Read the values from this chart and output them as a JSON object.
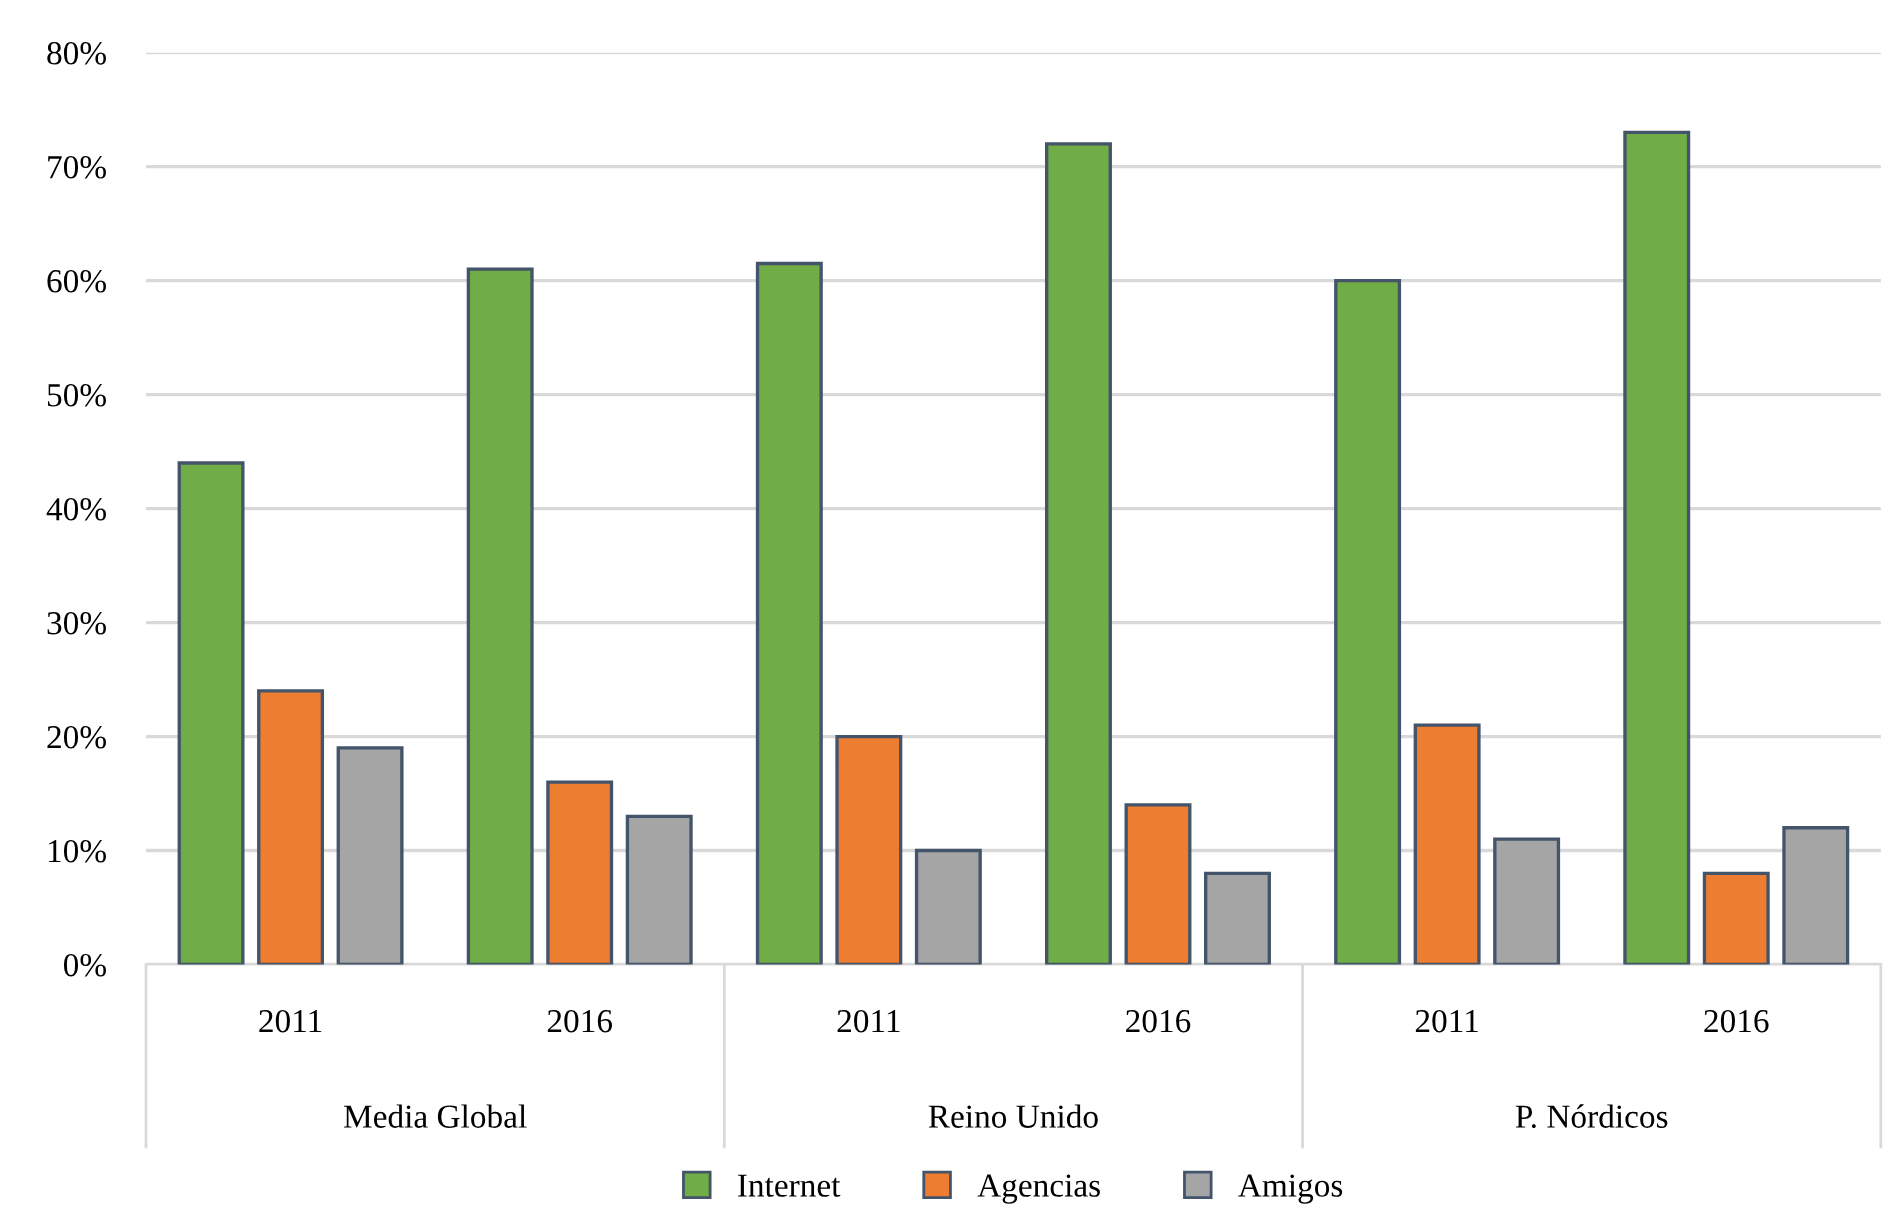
{
  "chart_data": {
    "type": "bar",
    "categories": [
      "2011",
      "2016",
      "2011",
      "2016",
      "2011",
      "2016"
    ],
    "annotations": [
      "Media Global",
      "Reino Unido",
      "P. Nórdicos"
    ],
    "series": [
      {
        "name": "Internet",
        "color": "#70ad47",
        "values": [
          44,
          61,
          61.5,
          72,
          60,
          73
        ]
      },
      {
        "name": "Agencias",
        "color": "#ed7d31",
        "values": [
          24,
          16,
          20,
          14,
          21,
          8
        ]
      },
      {
        "name": "Amigos",
        "color": "#a5a5a5",
        "values": [
          19,
          13,
          10,
          8,
          11,
          12
        ]
      }
    ],
    "ylim": [
      0,
      80
    ],
    "yticks": [
      {
        "value": 0,
        "label": "0%"
      },
      {
        "value": 10,
        "label": "10%"
      },
      {
        "value": 20,
        "label": "20%"
      },
      {
        "value": 30,
        "label": "30%"
      },
      {
        "value": 40,
        "label": "40%"
      },
      {
        "value": 50,
        "label": "50%"
      },
      {
        "value": 60,
        "label": "60%"
      },
      {
        "value": 70,
        "label": "70%"
      },
      {
        "value": 80,
        "label": "80%"
      }
    ],
    "grid": "y",
    "legend": "bottom"
  }
}
